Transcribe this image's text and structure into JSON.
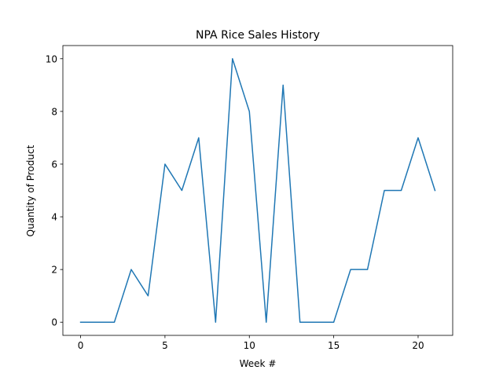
{
  "chart_data": {
    "type": "line",
    "title": "NPA Rice Sales History",
    "xlabel": "Week #",
    "ylabel": "Quantity of Product",
    "xlim": [
      -1.05,
      22.05
    ],
    "ylim": [
      -0.5,
      10.5
    ],
    "xticks": [
      0,
      5,
      10,
      15,
      20
    ],
    "yticks": [
      0,
      2,
      4,
      6,
      8,
      10
    ],
    "grid": false,
    "line_color": "#1f77b4",
    "series": [
      {
        "x": [
          0,
          1,
          2,
          3,
          4,
          5,
          6,
          7,
          8,
          9,
          10,
          11,
          12,
          13,
          14,
          15,
          16,
          17,
          18,
          19,
          20,
          21
        ],
        "values": [
          0,
          0,
          0,
          2,
          1,
          6,
          5,
          7,
          0,
          10,
          8,
          0,
          9,
          0,
          0,
          0,
          2,
          2,
          5,
          5,
          7,
          5
        ]
      }
    ]
  }
}
